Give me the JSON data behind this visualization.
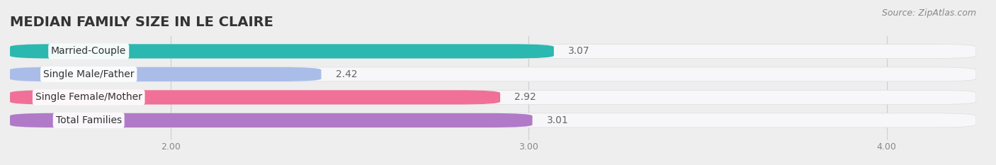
{
  "title": "MEDIAN FAMILY SIZE IN LE CLAIRE",
  "source": "Source: ZipAtlas.com",
  "categories": [
    "Married-Couple",
    "Single Male/Father",
    "Single Female/Mother",
    "Total Families"
  ],
  "values": [
    3.07,
    2.42,
    2.92,
    3.01
  ],
  "bar_colors": [
    "#2ab8b0",
    "#aabde8",
    "#f07098",
    "#b07ac8"
  ],
  "xlim_left": 1.55,
  "xlim_right": 4.25,
  "xticks": [
    2.0,
    3.0,
    4.0
  ],
  "xtick_labels": [
    "2.00",
    "3.00",
    "4.00"
  ],
  "bar_height": 0.62,
  "background_color": "#eeeeee",
  "bar_bg_color": "#f7f7f9",
  "title_fontsize": 14,
  "source_fontsize": 9,
  "label_fontsize": 10,
  "value_fontsize": 10
}
